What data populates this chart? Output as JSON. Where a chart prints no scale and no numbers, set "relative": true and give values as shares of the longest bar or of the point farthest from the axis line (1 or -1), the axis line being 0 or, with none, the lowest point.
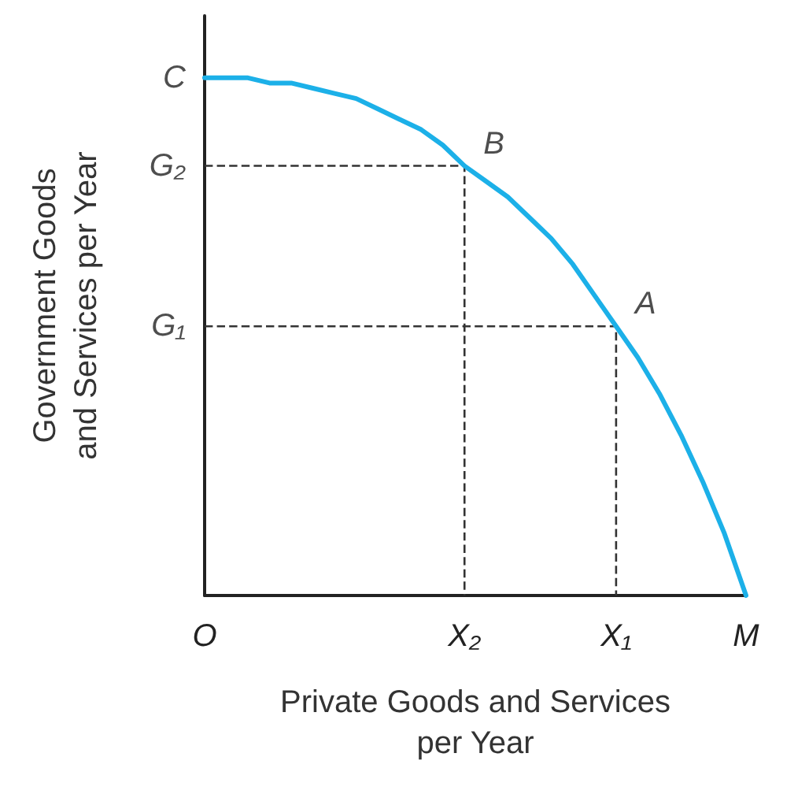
{
  "chart_data": {
    "type": "line",
    "relative": true,
    "xlabel": "Private Goods and Services\nper Year",
    "ylabel": "Government Goods\nand Services per Year",
    "categories": [
      "O",
      null,
      null,
      null,
      null,
      null,
      null,
      null,
      null,
      null,
      null,
      null,
      "X₂",
      null,
      null,
      null,
      null,
      null,
      null,
      "X₁",
      null,
      null,
      null,
      null,
      null,
      "M"
    ],
    "series": [
      {
        "color": "#1cb0e8",
        "line_style": "solid",
        "values": [
          1,
          1,
          1,
          0.99,
          0.99,
          0.98,
          0.97,
          0.96,
          0.94,
          0.92,
          0.9,
          0.87,
          0.83,
          0.8,
          0.77,
          0.73,
          0.69,
          0.64,
          0.58,
          0.52,
          0.46,
          0.39,
          0.31,
          0.22,
          0.12,
          0
        ]
      }
    ],
    "annotations": [
      {
        "text": "B",
        "x": "X₂",
        "y": 0.83
      },
      {
        "text": "A",
        "x": "X₁",
        "y": 0.52
      },
      {
        "text": "C",
        "x": "O",
        "y": 1
      },
      "G₂",
      "G₁"
    ],
    "grid": false,
    "marker": "none"
  }
}
